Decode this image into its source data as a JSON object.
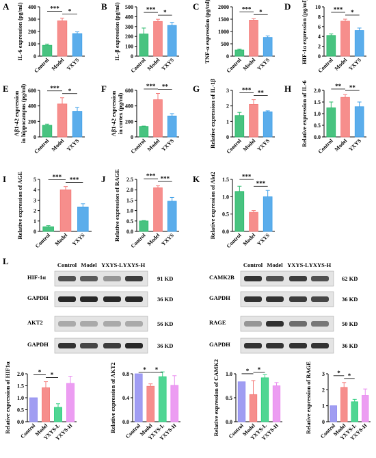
{
  "colors": {
    "control": "#28b86a",
    "model": "#f47a78",
    "yxys": "#3e9fe8",
    "sig": "#000000",
    "wb_control": "#8f8cf0",
    "wb_model": "#f47a78",
    "wb_yxysl": "#30cf80",
    "wb_yxysh": "#e98cf0"
  },
  "chart_data": [
    {
      "panel": "A",
      "type": "bar",
      "categories": [
        "Control",
        "Model",
        "YXYS"
      ],
      "values": [
        88,
        287,
        183
      ],
      "errors": [
        10,
        22,
        14
      ],
      "ylabel": "IL-6 expression (pg/ml)",
      "ylim": [
        0,
        400
      ],
      "yticks": [
        "0",
        "100",
        "200",
        "300",
        "400"
      ],
      "sig": [
        {
          "a": 0,
          "b": 1,
          "label": "***"
        },
        {
          "a": 1,
          "b": 2,
          "label": "*"
        }
      ]
    },
    {
      "panel": "B",
      "type": "bar",
      "categories": [
        "Control",
        "Model",
        "YXYS"
      ],
      "values": [
        225,
        352,
        312
      ],
      "errors": [
        60,
        22,
        30
      ],
      "ylabel": "IL-β expression (pg/ml)",
      "ylim": [
        0,
        500
      ],
      "yticks": [
        "0",
        "100",
        "200",
        "300",
        "400",
        "500"
      ],
      "sig": [
        {
          "a": 0,
          "b": 1,
          "label": "***"
        },
        {
          "a": 1,
          "b": 2,
          "label": "*"
        }
      ]
    },
    {
      "panel": "C",
      "type": "bar",
      "categories": [
        "Control",
        "Model",
        "YXYS"
      ],
      "values": [
        250,
        1460,
        760
      ],
      "errors": [
        30,
        60,
        60
      ],
      "ylabel": "TNF-α expression (pg/ml)",
      "ylim": [
        0,
        2000
      ],
      "yticks": [
        "0",
        "500",
        "1000",
        "1500",
        "2000"
      ],
      "sig": [
        {
          "a": 0,
          "b": 1,
          "label": "***"
        },
        {
          "a": 1,
          "b": 2,
          "label": "*"
        }
      ]
    },
    {
      "panel": "D",
      "type": "bar",
      "categories": [
        "Control",
        "Model",
        "YXYS"
      ],
      "values": [
        4.2,
        7.1,
        5.2
      ],
      "errors": [
        0.3,
        0.4,
        0.5
      ],
      "ylabel": "HIF-1α expression (pg/ml)",
      "ylim": [
        0,
        10
      ],
      "yticks": [
        "0",
        "2",
        "4",
        "6",
        "8",
        "10"
      ],
      "sig": [
        {
          "a": 0,
          "b": 1,
          "label": "***"
        },
        {
          "a": 1,
          "b": 2,
          "label": "*"
        }
      ]
    },
    {
      "panel": "E",
      "type": "bar",
      "categories": [
        "Control",
        "Model",
        "YXYS"
      ],
      "values": [
        150,
        425,
        330
      ],
      "errors": [
        15,
        80,
        50
      ],
      "ylabel": "Aβ1-42 expression in hippocampus (pg/ml)",
      "ylim": [
        0,
        600
      ],
      "yticks": [
        "0",
        "200",
        "400",
        "600"
      ],
      "sig": [
        {
          "a": 0,
          "b": 1,
          "label": "***"
        },
        {
          "a": 1,
          "b": 2,
          "label": "*"
        }
      ]
    },
    {
      "panel": "F",
      "type": "bar",
      "categories": [
        "Control",
        "Model",
        "YXYS"
      ],
      "values": [
        135,
        480,
        270
      ],
      "errors": [
        5,
        80,
        30
      ],
      "ylabel": "Aβ1-42 expression in cortex (pg/ml)",
      "ylim": [
        0,
        600
      ],
      "yticks": [
        "0",
        "200",
        "400",
        "600"
      ],
      "sig": [
        {
          "a": 0,
          "b": 1,
          "label": "***"
        },
        {
          "a": 1,
          "b": 2,
          "label": "**"
        }
      ]
    },
    {
      "panel": "G",
      "type": "bar",
      "categories": [
        "Control",
        "Model",
        "YXYS"
      ],
      "values": [
        1.38,
        2.1,
        1.62
      ],
      "errors": [
        0.2,
        0.3,
        0.06
      ],
      "ylabel": "Relative expression of IL-1β",
      "ylim": [
        0,
        3
      ],
      "yticks": [
        "0",
        "1",
        "2",
        "3"
      ],
      "sig": [
        {
          "a": 0,
          "b": 1,
          "label": "***"
        },
        {
          "a": 1,
          "b": 2,
          "label": "**"
        }
      ]
    },
    {
      "panel": "H",
      "type": "bar",
      "categories": [
        "Control",
        "Model",
        "YXYS"
      ],
      "values": [
        1.25,
        1.7,
        1.3
      ],
      "errors": [
        0.25,
        0.12,
        0.2
      ],
      "ylabel": "Relative expression of IL-6",
      "ylim": [
        0,
        2.0
      ],
      "yticks": [
        "0.0",
        "0.5",
        "1.0",
        "1.5",
        "2.0"
      ],
      "sig": [
        {
          "a": 0,
          "b": 1,
          "label": "**"
        },
        {
          "a": 1,
          "b": 2,
          "label": "**"
        }
      ]
    },
    {
      "panel": "I",
      "type": "bar",
      "categories": [
        "Control",
        "Model",
        "YXYS"
      ],
      "values": [
        0.45,
        4.0,
        2.35
      ],
      "errors": [
        0.1,
        0.3,
        0.3
      ],
      "ylabel": "Relative expression of AGE",
      "ylim": [
        0,
        5
      ],
      "yticks": [
        "0",
        "1",
        "2",
        "3",
        "4",
        "5"
      ],
      "sig": [
        {
          "a": 0,
          "b": 1,
          "label": "***"
        },
        {
          "a": 1,
          "b": 2,
          "label": "***"
        }
      ]
    },
    {
      "panel": "J",
      "type": "bar",
      "categories": [
        "Control",
        "Model",
        "YXYS"
      ],
      "values": [
        0.5,
        2.1,
        1.45
      ],
      "errors": [
        0.02,
        0.1,
        0.18
      ],
      "ylabel": "Relative expression of RAGE",
      "ylim": [
        0,
        2.5
      ],
      "yticks": [
        "0.0",
        "0.5",
        "1.0",
        "1.5",
        "2.0",
        "2.5"
      ],
      "sig": [
        {
          "a": 0,
          "b": 1,
          "label": "***"
        },
        {
          "a": 1,
          "b": 2,
          "label": "***"
        }
      ]
    },
    {
      "panel": "K",
      "type": "bar",
      "categories": [
        "Control",
        "Model",
        "YXYS"
      ],
      "values": [
        1.15,
        0.55,
        1.0
      ],
      "errors": [
        0.15,
        0.05,
        0.18
      ],
      "ylabel": "Relative expression of Akt2",
      "ylim": [
        0,
        1.5
      ],
      "yticks": [
        "0.0",
        "0.5",
        "1.0",
        "1.5"
      ],
      "sig": [
        {
          "a": 0,
          "b": 1,
          "label": "***"
        },
        {
          "a": 1,
          "b": 2,
          "label": "***"
        }
      ]
    },
    {
      "panel": "L1",
      "type": "bar",
      "categories": [
        "Control",
        "Model",
        "YXYS-L",
        "YXYS-H"
      ],
      "values": [
        1.0,
        1.42,
        0.6,
        1.6
      ],
      "errors": [
        0,
        0.25,
        0.15,
        0.3
      ],
      "ylabel": "Relative expression of HIF1α",
      "ylim": [
        0,
        2.0
      ],
      "yticks": [
        "0.0",
        "0.5",
        "1.0",
        "1.5",
        "2.0"
      ],
      "sig": [
        {
          "a": 0,
          "b": 1,
          "label": "*"
        },
        {
          "a": 1,
          "b": 2,
          "label": "*"
        }
      ]
    },
    {
      "panel": "L2",
      "type": "bar",
      "categories": [
        "Control",
        "Model",
        "YXYS-L",
        "YXYS-H"
      ],
      "values": [
        1.0,
        0.74,
        0.94,
        0.76
      ],
      "errors": [
        0,
        0.05,
        0.1,
        0.2
      ],
      "ylabel": "Relative expression of AKT2",
      "ylim": [
        0,
        1.0
      ],
      "yticks": [
        "0.0",
        "0.4",
        "0.8"
      ],
      "sig": [
        {
          "a": 0,
          "b": 1,
          "label": "*"
        },
        {
          "a": 1,
          "b": 2,
          "label": "*"
        }
      ]
    },
    {
      "panel": "L3",
      "type": "bar",
      "categories": [
        "Control",
        "Model",
        "YXYS-L",
        "YXYS-H"
      ],
      "values": [
        1.0,
        0.68,
        1.1,
        0.9
      ],
      "errors": [
        0,
        0.35,
        0.08,
        0.08
      ],
      "ylabel": "Relative expression of CAMK2",
      "ylim": [
        0,
        1.2
      ],
      "yticks": [
        "0.0",
        "0.5",
        "1.0"
      ],
      "sig": [
        {
          "a": 0,
          "b": 1,
          "label": "*"
        },
        {
          "a": 1,
          "b": 2,
          "label": "*"
        }
      ]
    },
    {
      "panel": "L4",
      "type": "bar",
      "categories": [
        "Control",
        "Model",
        "YXYS-L",
        "YXYS-H"
      ],
      "values": [
        1.0,
        2.15,
        1.25,
        1.65
      ],
      "errors": [
        0,
        0.3,
        0.15,
        0.4
      ],
      "ylabel": "Relative expression of RAGE",
      "ylim": [
        0,
        3.0
      ],
      "yticks": [
        "0",
        "1",
        "2",
        "3"
      ],
      "sig": [
        {
          "a": 0,
          "b": 1,
          "label": "*"
        },
        {
          "a": 1,
          "b": 2,
          "label": "*"
        }
      ]
    }
  ],
  "western_blot": {
    "panel_label": "L",
    "left": {
      "lanes": [
        "Control",
        "Model",
        "YXYS-L",
        "YXYS-H"
      ],
      "rows": [
        {
          "protein": "HIF-1α",
          "size": "91 KD",
          "intensity": [
            0.75,
            0.7,
            0.4,
            0.85
          ]
        },
        {
          "protein": "GAPDH",
          "size": "36 KD",
          "intensity": [
            0.95,
            0.95,
            0.95,
            0.95
          ]
        },
        {
          "protein": "AKT2",
          "size": "56 KD",
          "intensity": [
            0.3,
            0.3,
            0.3,
            0.3
          ]
        },
        {
          "protein": "GAPDH",
          "size": "36 KD",
          "intensity": [
            0.9,
            0.8,
            0.85,
            0.95
          ]
        }
      ]
    },
    "right": {
      "lanes": [
        "Control",
        "Model",
        "YXYS-L",
        "YXYS-H"
      ],
      "rows": [
        {
          "protein": "CAMK2B",
          "size": "62 KD",
          "intensity": [
            0.9,
            0.75,
            0.85,
            0.75
          ]
        },
        {
          "protein": "GAPDH",
          "size": "36 KD",
          "intensity": [
            0.9,
            0.9,
            0.85,
            0.8
          ]
        },
        {
          "protein": "RAGE",
          "size": "50 KD",
          "intensity": [
            0.4,
            0.9,
            0.6,
            0.55
          ]
        },
        {
          "protein": "GAPDH",
          "size": "36 KD",
          "intensity": [
            0.9,
            0.9,
            0.9,
            0.9
          ]
        }
      ]
    }
  }
}
